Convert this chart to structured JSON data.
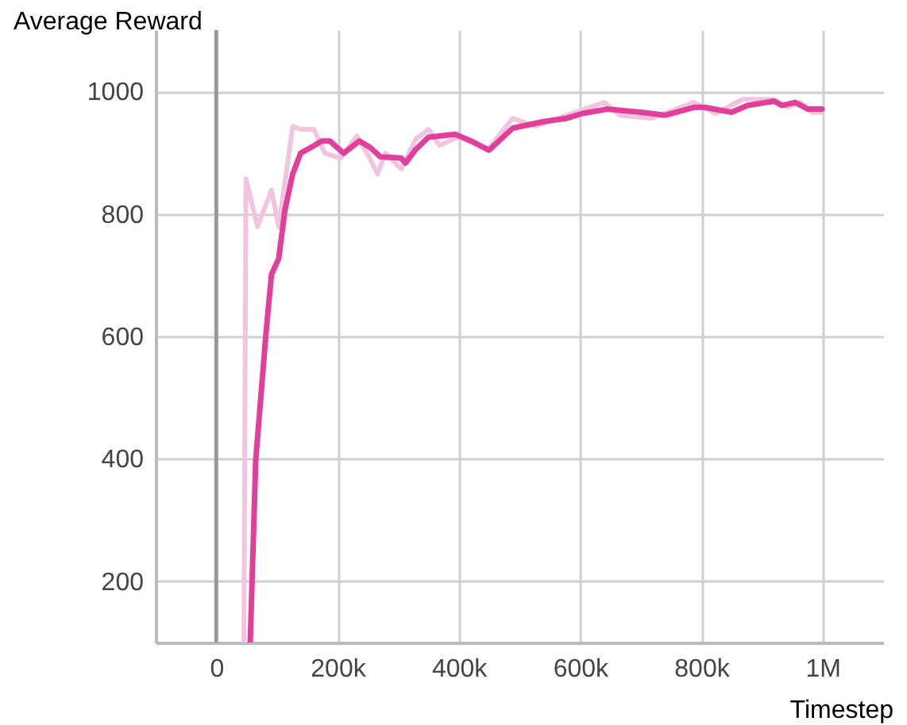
{
  "chart_data": {
    "type": "line",
    "ylabel": "Average Reward",
    "xlabel": "Timestep",
    "xlim": [
      -100000,
      1100000
    ],
    "ylim": [
      100,
      1100
    ],
    "xticks": [
      0,
      {
        "value": 200000,
        "label": "200k"
      },
      {
        "value": 400000,
        "label": "400k"
      },
      {
        "value": 600000,
        "label": "600k"
      },
      {
        "value": 800000,
        "label": "800k"
      },
      {
        "value": 1000000,
        "label": "1M"
      }
    ],
    "yticks": [
      200,
      400,
      600,
      800,
      1000
    ],
    "grid": true,
    "line_style": "solid",
    "ref_lines": [
      {
        "axis": "x",
        "value": 0,
        "color": "#999999"
      }
    ],
    "series": [
      {
        "color": "#f2c4e0",
        "x": [
          45500,
          49000,
          68000,
          91000,
          103000,
          126000,
          139000,
          161000,
          179000,
          205000,
          232000,
          253000,
          266000,
          279000,
          305000,
          329000,
          350000,
          368000,
          403000,
          447000,
          489000,
          526000,
          578000,
          640000,
          666000,
          718000,
          788000,
          824000,
          868000,
          920000,
          942000,
          963000,
          982000,
          999000
        ],
        "values": [
          100,
          857,
          779,
          839,
          779,
          943,
          938,
          938,
          899,
          891,
          927,
          891,
          865,
          899,
          873,
          922,
          938,
          912,
          927,
          904,
          956,
          943,
          961,
          982,
          961,
          956,
          982,
          964,
          987,
          987,
          974,
          982,
          966,
          966
        ]
      },
      {
        "color": "#e0409a",
        "x": [
          56000,
          65000,
          82000,
          91000,
          103000,
          113000,
          126000,
          139000,
          157000,
          174000,
          187000,
          210000,
          236000,
          253000,
          271000,
          305000,
          312000,
          328000,
          350000,
          394000,
          420000,
          450000,
          489000,
          542000,
          578000,
          604000,
          644000,
          700000,
          740000,
          788000,
          805000,
          850000,
          876000,
          920000,
          933000,
          955000,
          976000,
          999000
        ],
        "values": [
          100,
          397,
          605,
          701,
          727,
          805,
          865,
          899,
          909,
          919,
          919,
          899,
          919,
          909,
          893,
          891,
          883,
          904,
          925,
          930,
          919,
          904,
          940,
          951,
          956,
          964,
          971,
          966,
          961,
          974,
          974,
          966,
          977,
          984,
          977,
          982,
          971,
          971
        ]
      }
    ]
  }
}
